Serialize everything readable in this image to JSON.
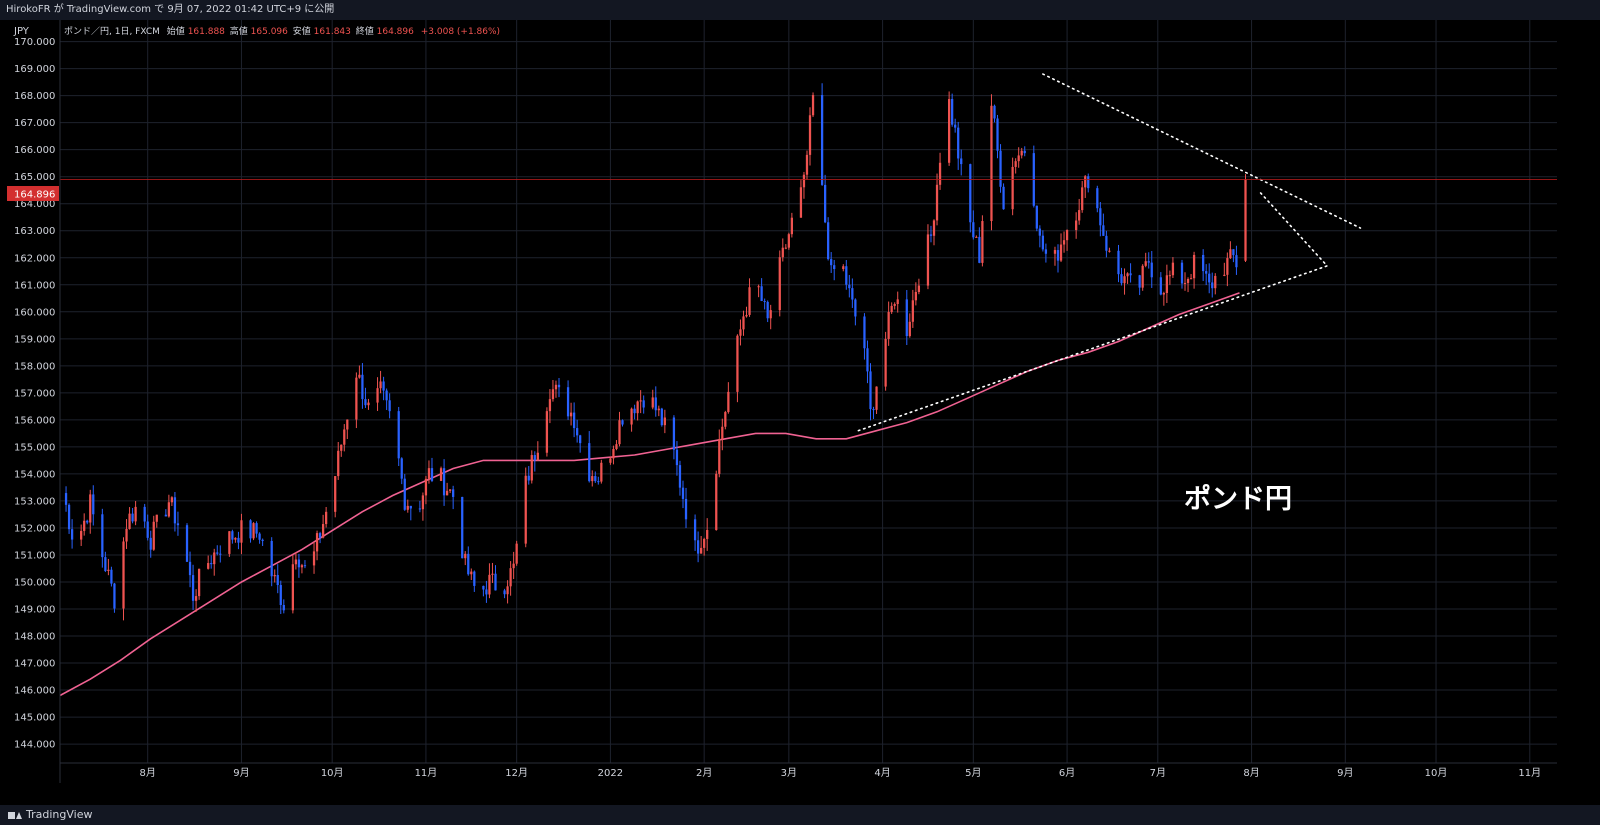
{
  "header": {
    "publish_line": "HirokoFR が TradingView.com で 9月 07, 2022 01:42 UTC+9 に公開"
  },
  "legend": {
    "symbol": "ポンド／円, 1日, FXCM",
    "open_label": "始値",
    "open_value": "161.888",
    "high_label": "高値",
    "high_value": "165.096",
    "low_label": "安値",
    "low_value": "161.843",
    "close_label": "終値",
    "close_value": "164.896",
    "change": "+3.008 (+1.86%)"
  },
  "footer": {
    "brand": "TradingView"
  },
  "colors": {
    "up": "#ef5350",
    "down": "#2962ff",
    "ma": "#f06292",
    "grid": "#1e222d",
    "price_badge": "#d32f2f",
    "text": "#d1d4dc"
  },
  "chart_data": {
    "type": "candlestick",
    "currency_label": "JPY",
    "annotation": "ポンド円",
    "current_price": "164.896",
    "y_ticks": [
      "170.000",
      "169.000",
      "168.000",
      "167.000",
      "166.000",
      "165.000",
      "164.000",
      "163.000",
      "162.000",
      "161.000",
      "160.000",
      "159.000",
      "158.000",
      "157.000",
      "156.000",
      "155.000",
      "154.000",
      "153.000",
      "152.000",
      "151.000",
      "150.000",
      "149.000",
      "148.000",
      "147.000",
      "146.000",
      "145.000",
      "144.000"
    ],
    "ylim": [
      143.3,
      170.8
    ],
    "x_range_days": [
      0,
      495
    ],
    "x_ticks": [
      {
        "label": "8月",
        "day": 29
      },
      {
        "label": "9月",
        "day": 60
      },
      {
        "label": "10月",
        "day": 90
      },
      {
        "label": "11月",
        "day": 121
      },
      {
        "label": "12月",
        "day": 151
      },
      {
        "label": "2022",
        "day": 182
      },
      {
        "label": "2月",
        "day": 213
      },
      {
        "label": "3月",
        "day": 241
      },
      {
        "label": "4月",
        "day": 272
      },
      {
        "label": "5月",
        "day": 302
      },
      {
        "label": "6月",
        "day": 333
      },
      {
        "label": "7月",
        "day": 363
      },
      {
        "label": "8月",
        "day": 394
      },
      {
        "label": "9月",
        "day": 425
      },
      {
        "label": "10月",
        "day": 455
      },
      {
        "label": "11月",
        "day": 486
      }
    ],
    "anchors": [
      [
        1,
        153.3
      ],
      [
        5,
        151.3
      ],
      [
        10,
        152.9
      ],
      [
        14,
        151.0
      ],
      [
        18,
        149.4
      ],
      [
        22,
        152.2
      ],
      [
        26,
        152.9
      ],
      [
        30,
        151.6
      ],
      [
        36,
        153.0
      ],
      [
        40,
        151.9
      ],
      [
        44,
        149.5
      ],
      [
        48,
        150.6
      ],
      [
        54,
        151.5
      ],
      [
        60,
        151.9
      ],
      [
        66,
        151.8
      ],
      [
        70,
        150.3
      ],
      [
        74,
        149.2
      ],
      [
        78,
        151.2
      ],
      [
        82,
        150.2
      ],
      [
        86,
        151.8
      ],
      [
        90,
        153.4
      ],
      [
        94,
        155.7
      ],
      [
        98,
        157.8
      ],
      [
        102,
        156.4
      ],
      [
        106,
        157.0
      ],
      [
        110,
        155.8
      ],
      [
        114,
        153.1
      ],
      [
        118,
        152.6
      ],
      [
        122,
        154.0
      ],
      [
        126,
        153.8
      ],
      [
        130,
        153.2
      ],
      [
        134,
        150.6
      ],
      [
        138,
        149.5
      ],
      [
        142,
        150.0
      ],
      [
        146,
        149.8
      ],
      [
        150,
        150.5
      ],
      [
        154,
        153.6
      ],
      [
        158,
        155.2
      ],
      [
        162,
        157.2
      ],
      [
        166,
        156.8
      ],
      [
        170,
        156.1
      ],
      [
        174,
        154.2
      ],
      [
        178,
        153.9
      ],
      [
        182,
        154.9
      ],
      [
        186,
        156.2
      ],
      [
        190,
        156.6
      ],
      [
        194,
        157.0
      ],
      [
        198,
        156.2
      ],
      [
        202,
        155.2
      ],
      [
        206,
        153.2
      ],
      [
        210,
        151.2
      ],
      [
        214,
        152.1
      ],
      [
        218,
        155.2
      ],
      [
        222,
        157.6
      ],
      [
        226,
        159.9
      ],
      [
        230,
        161.2
      ],
      [
        234,
        159.6
      ],
      [
        238,
        161.6
      ],
      [
        242,
        163.3
      ],
      [
        246,
        164.7
      ],
      [
        249,
        167.9
      ],
      [
        252,
        164.4
      ],
      [
        255,
        161.3
      ],
      [
        258,
        162.0
      ],
      [
        262,
        160.2
      ],
      [
        266,
        158.7
      ],
      [
        268,
        156.2
      ],
      [
        272,
        158.5
      ],
      [
        276,
        160.6
      ],
      [
        280,
        159.4
      ],
      [
        284,
        161.4
      ],
      [
        288,
        162.8
      ],
      [
        291,
        165.8
      ],
      [
        293,
        168.3
      ],
      [
        296,
        166.6
      ],
      [
        300,
        163.6
      ],
      [
        304,
        162.1
      ],
      [
        308,
        167.7
      ],
      [
        312,
        164.1
      ],
      [
        316,
        165.8
      ],
      [
        320,
        166.1
      ],
      [
        324,
        162.6
      ],
      [
        328,
        161.6
      ],
      [
        332,
        162.9
      ],
      [
        336,
        163.8
      ],
      [
        340,
        165.0
      ],
      [
        344,
        163.4
      ],
      [
        348,
        161.6
      ],
      [
        352,
        161.2
      ],
      [
        356,
        160.7
      ],
      [
        360,
        161.9
      ],
      [
        364,
        160.9
      ],
      [
        368,
        161.4
      ],
      [
        372,
        161.2
      ],
      [
        376,
        161.9
      ],
      [
        380,
        160.9
      ],
      [
        384,
        161.6
      ],
      [
        388,
        162.0
      ],
      [
        390,
        161.6
      ],
      [
        392,
        164.9
      ]
    ],
    "ohlc_final": {
      "open": 161.888,
      "high": 165.096,
      "low": 161.843,
      "close": 164.896
    },
    "moving_average": [
      [
        0,
        145.8
      ],
      [
        10,
        146.4
      ],
      [
        20,
        147.1
      ],
      [
        30,
        147.9
      ],
      [
        40,
        148.6
      ],
      [
        50,
        149.3
      ],
      [
        60,
        150.0
      ],
      [
        70,
        150.6
      ],
      [
        80,
        151.2
      ],
      [
        90,
        151.9
      ],
      [
        100,
        152.6
      ],
      [
        110,
        153.2
      ],
      [
        120,
        153.7
      ],
      [
        130,
        154.2
      ],
      [
        140,
        154.5
      ],
      [
        150,
        154.5
      ],
      [
        160,
        154.5
      ],
      [
        170,
        154.5
      ],
      [
        180,
        154.6
      ],
      [
        190,
        154.7
      ],
      [
        200,
        154.9
      ],
      [
        210,
        155.1
      ],
      [
        220,
        155.3
      ],
      [
        230,
        155.5
      ],
      [
        240,
        155.5
      ],
      [
        250,
        155.3
      ],
      [
        260,
        155.3
      ],
      [
        270,
        155.6
      ],
      [
        280,
        155.9
      ],
      [
        290,
        156.3
      ],
      [
        300,
        156.8
      ],
      [
        310,
        157.3
      ],
      [
        320,
        157.8
      ],
      [
        330,
        158.2
      ],
      [
        340,
        158.5
      ],
      [
        350,
        158.9
      ],
      [
        360,
        159.4
      ],
      [
        370,
        159.9
      ],
      [
        380,
        160.3
      ],
      [
        390,
        160.7
      ],
      [
        400,
        161.0
      ],
      [
        410,
        161.3
      ],
      [
        420,
        161.6
      ],
      [
        430,
        161.9
      ],
      [
        440,
        162.2
      ],
      [
        450,
        162.4
      ],
      [
        460,
        162.7
      ],
      [
        470,
        163.0
      ],
      [
        480,
        163.2
      ],
      [
        490,
        163.5
      ]
    ],
    "trendlines": [
      {
        "from": [
          325,
          168.8
        ],
        "to": [
          430,
          163.1
        ]
      },
      {
        "from": [
          264,
          155.6
        ],
        "to": [
          419,
          161.7
        ]
      },
      {
        "from": [
          397,
          164.4
        ],
        "to": [
          419,
          161.7
        ]
      }
    ],
    "grid": true
  }
}
